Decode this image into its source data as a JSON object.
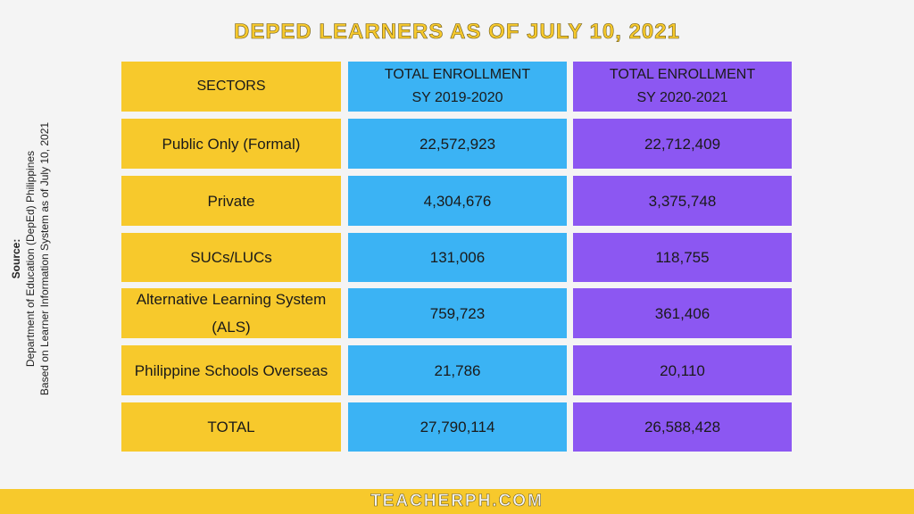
{
  "title": "DEPED LEARNERS AS OF JULY 10, 2021",
  "source": {
    "label": "Source:",
    "line1": "Department of Education (DepEd) Philippines",
    "line2": "Based on Learner Information System as of July 10, 2021"
  },
  "table": {
    "headers": [
      "SECTORS",
      "TOTAL ENROLLMENT\nSY 2019-2020",
      "TOTAL ENROLLMENT\nSY 2020-2021"
    ],
    "rows": [
      [
        "Public Only (Formal)",
        "22,572,923",
        "22,712,409"
      ],
      [
        "Private",
        "4,304,676",
        "3,375,748"
      ],
      [
        "SUCs/LUCs",
        "131,006",
        "118,755"
      ],
      [
        "Alternative Learning System (ALS)",
        "759,723",
        "361,406"
      ],
      [
        "Philippine Schools Overseas",
        "21,786",
        "20,110"
      ],
      [
        "TOTAL",
        "27,790,114",
        "26,588,428"
      ]
    ]
  },
  "footer": "TEACHERPH.COM",
  "colors": {
    "sectors": "#f7c92c",
    "sy2019": "#3bb3f4",
    "sy2020": "#8c57f2"
  }
}
